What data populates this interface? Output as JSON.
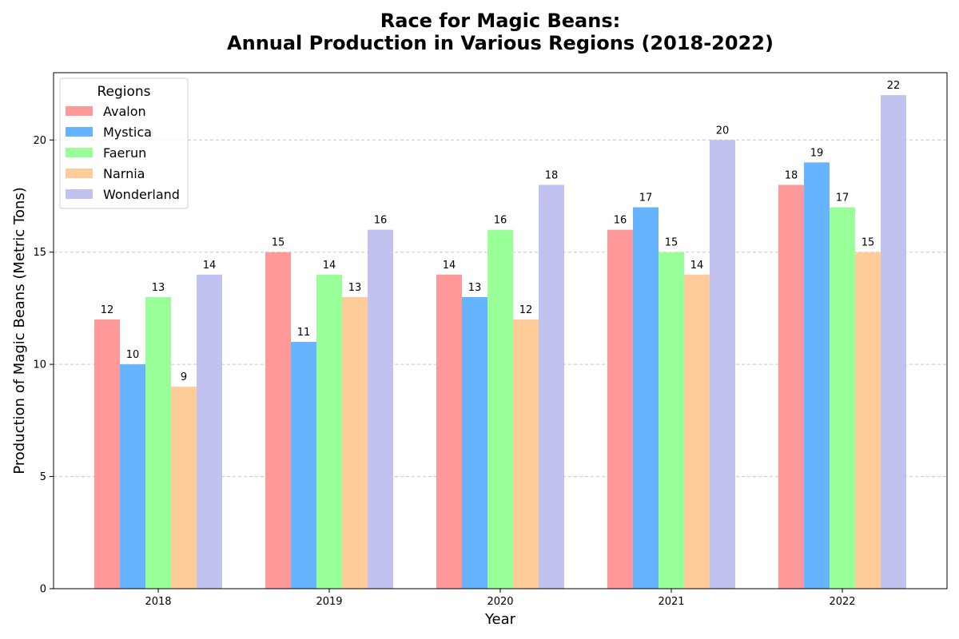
{
  "chart_data": {
    "type": "bar",
    "title": "Race for Magic Beans:",
    "subtitle": "Annual Production in Various Regions (2018-2022)",
    "xlabel": "Year",
    "ylabel": "Production of Magic Beans (Metric Tons)",
    "categories": [
      "2018",
      "2019",
      "2020",
      "2021",
      "2022"
    ],
    "ylim": [
      0,
      23
    ],
    "yticks": [
      0,
      5,
      10,
      15,
      20
    ],
    "grid": "y-dashed",
    "legend": {
      "title": "Regions",
      "position": "top-left"
    },
    "series": [
      {
        "name": "Avalon",
        "color": "#ff9999",
        "values": [
          12,
          15,
          14,
          16,
          18
        ]
      },
      {
        "name": "Mystica",
        "color": "#66b3ff",
        "values": [
          10,
          11,
          13,
          17,
          19
        ]
      },
      {
        "name": "Faerun",
        "color": "#99ff99",
        "values": [
          13,
          14,
          16,
          15,
          17
        ]
      },
      {
        "name": "Narnia",
        "color": "#ffcc99",
        "values": [
          9,
          13,
          12,
          14,
          15
        ]
      },
      {
        "name": "Wonderland",
        "color": "#c2c2f0",
        "values": [
          14,
          16,
          18,
          20,
          22
        ]
      }
    ]
  }
}
